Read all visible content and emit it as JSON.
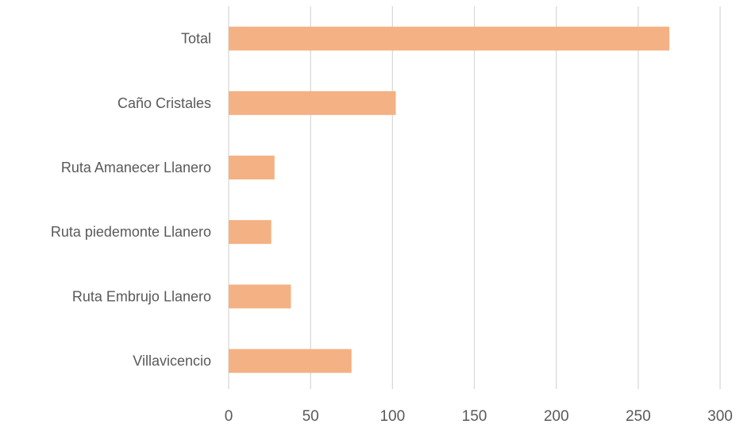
{
  "chart_data": {
    "type": "bar",
    "orientation": "horizontal",
    "categories": [
      "Total",
      "Caño Cristales",
      "Ruta Amanecer Llanero",
      "Ruta piedemonte Llanero",
      "Ruta Embrujo Llanero",
      "Villavicencio"
    ],
    "values": [
      269,
      102,
      28,
      26,
      38,
      75
    ],
    "xlim": [
      0,
      300
    ],
    "xticks": [
      0,
      50,
      100,
      150,
      200,
      250,
      300
    ],
    "grid": true,
    "legend": "none",
    "colors": {
      "bar": "#f4b183",
      "grid": "#d9d9d9",
      "text": "#595959"
    }
  }
}
